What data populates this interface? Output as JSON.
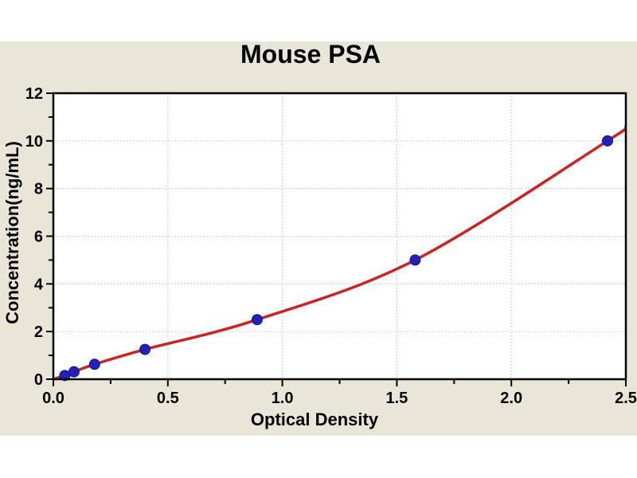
{
  "chart_data": {
    "type": "scatter",
    "title": "Mouse PSA",
    "xlabel": "Optical Density",
    "ylabel": "Concentration(ng/mL)",
    "xlim": [
      0,
      2.5
    ],
    "ylim": [
      0,
      12
    ],
    "x_major_ticks": [
      0,
      0.5,
      1,
      1.5,
      2,
      2.5
    ],
    "x_tick_labels": [
      "0.0",
      "0.5",
      "1.0",
      "1.5",
      "2.0",
      "2.5"
    ],
    "x_minor_ticks": [
      0.25,
      0.75,
      1.25,
      1.75,
      2.25
    ],
    "y_major_ticks": [
      0,
      2,
      4,
      6,
      8,
      10,
      12
    ],
    "y_tick_labels": [
      "0",
      "2",
      "4",
      "6",
      "8",
      "10",
      "12"
    ],
    "y_minor_ticks": [
      1,
      3,
      5,
      7,
      9,
      11
    ],
    "grid": {
      "style": "dotted",
      "x_at": [
        0.5,
        1,
        1.5,
        2
      ],
      "y_at": [
        2,
        4,
        6,
        8,
        10
      ]
    },
    "legend": "none",
    "series": [
      {
        "name": "standard-points",
        "type": "scatter",
        "marker": "circle",
        "x": [
          0.05,
          0.09,
          0.18,
          0.4,
          0.89,
          1.58,
          2.42
        ],
        "y": [
          0.156,
          0.312,
          0.625,
          1.25,
          2.5,
          5.0,
          10.0
        ]
      },
      {
        "name": "fitted-curve",
        "type": "line",
        "x": [
          0,
          0.05,
          0.09,
          0.18,
          0.4,
          0.89,
          1.58,
          2.42,
          2.5
        ],
        "y": [
          0,
          0.156,
          0.312,
          0.625,
          1.25,
          2.5,
          5.0,
          10.0,
          10.6
        ]
      }
    ],
    "colors": {
      "canvas_background": "#e9e6d8",
      "outer_background": "#ffffff",
      "plot_background": "#ffffff",
      "frame": "#000000",
      "grid": "#c2c2c2",
      "curve": "#cc2222",
      "marker_fill": "#2222bb",
      "marker_edge": "#14148a",
      "text": "#000000"
    }
  }
}
